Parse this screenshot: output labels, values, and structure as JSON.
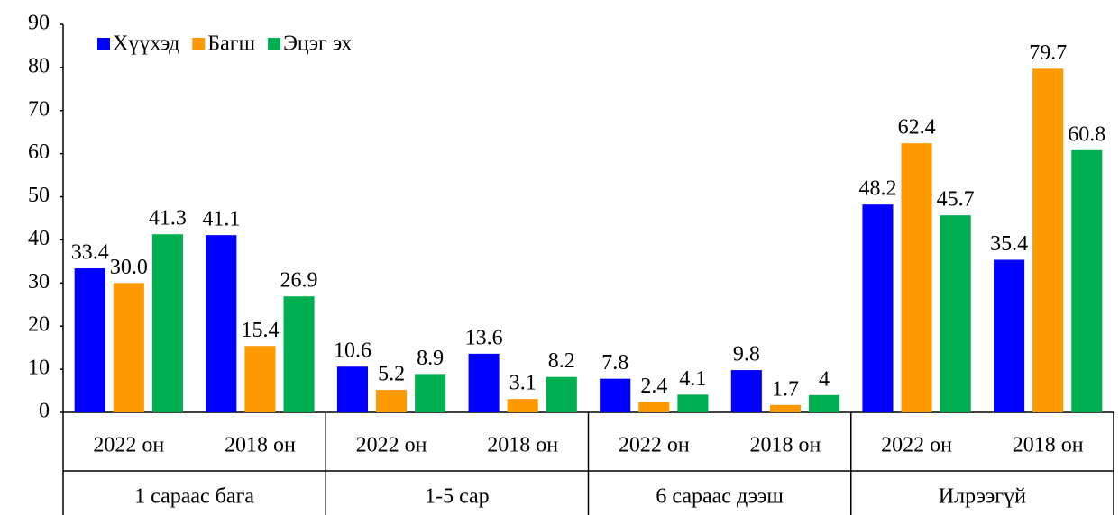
{
  "chart_data": {
    "type": "bar",
    "categories": [
      "2022 он",
      "2018 он",
      "2022 он",
      "2018 он",
      "2022 он",
      "2018 он",
      "2022 он",
      "2018 он"
    ],
    "groups": [
      "1 сараас бага",
      "1-5 сар",
      "6 сараас дээш",
      "Илрээгүй"
    ],
    "series": [
      {
        "name": "Хүүхэд",
        "color": "#0000ff",
        "values": [
          33.4,
          41.1,
          10.6,
          13.6,
          7.8,
          9.8,
          48.2,
          35.4
        ]
      },
      {
        "name": "Багш",
        "color": "#ff9900",
        "values": [
          30.0,
          15.4,
          5.2,
          3.1,
          2.4,
          1.7,
          62.4,
          79.7
        ],
        "value_labels": [
          "30.0",
          "15.4",
          "5.2",
          "3.1",
          "2.4",
          "1.7",
          "62.4",
          "79.7"
        ]
      },
      {
        "name": "Эцэг эх",
        "color": "#00b050",
        "values": [
          41.3,
          26.9,
          8.9,
          8.2,
          4.1,
          4,
          45.7,
          60.8
        ]
      }
    ],
    "ylim": [
      0,
      90
    ],
    "yticks": [
      0,
      10,
      20,
      30,
      40,
      50,
      60,
      70,
      80,
      90
    ],
    "legend": "top-left"
  }
}
